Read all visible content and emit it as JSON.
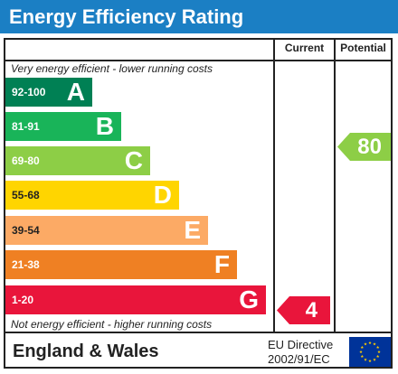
{
  "title": "Energy Efficiency Rating",
  "columns": {
    "current": "Current",
    "potential": "Potential"
  },
  "captions": {
    "top": "Very energy efficient - lower running costs",
    "bottom": "Not energy efficient - higher running costs"
  },
  "bands": [
    {
      "range": "92-100",
      "letter": "A",
      "color": "#008054"
    },
    {
      "range": "81-91",
      "letter": "B",
      "color": "#19b459"
    },
    {
      "range": "69-80",
      "letter": "C",
      "color": "#8dce46"
    },
    {
      "range": "55-68",
      "letter": "D",
      "color": "#ffd500"
    },
    {
      "range": "39-54",
      "letter": "E",
      "color": "#fcaa65"
    },
    {
      "range": "21-38",
      "letter": "F",
      "color": "#ef8023"
    },
    {
      "range": "1-20",
      "letter": "G",
      "color": "#e9153b"
    }
  ],
  "current_rating": {
    "value": "4",
    "band": "G",
    "color": "#e9153b"
  },
  "potential_rating": {
    "value": "80",
    "band": "C",
    "color": "#8dce46"
  },
  "footer": {
    "region": "England & Wales",
    "directive_line1": "EU Directive",
    "directive_line2": "2002/91/EC",
    "flag_icon": "eu-flag-icon",
    "flag_color": "#003399",
    "star_color": "#ffcc00"
  }
}
